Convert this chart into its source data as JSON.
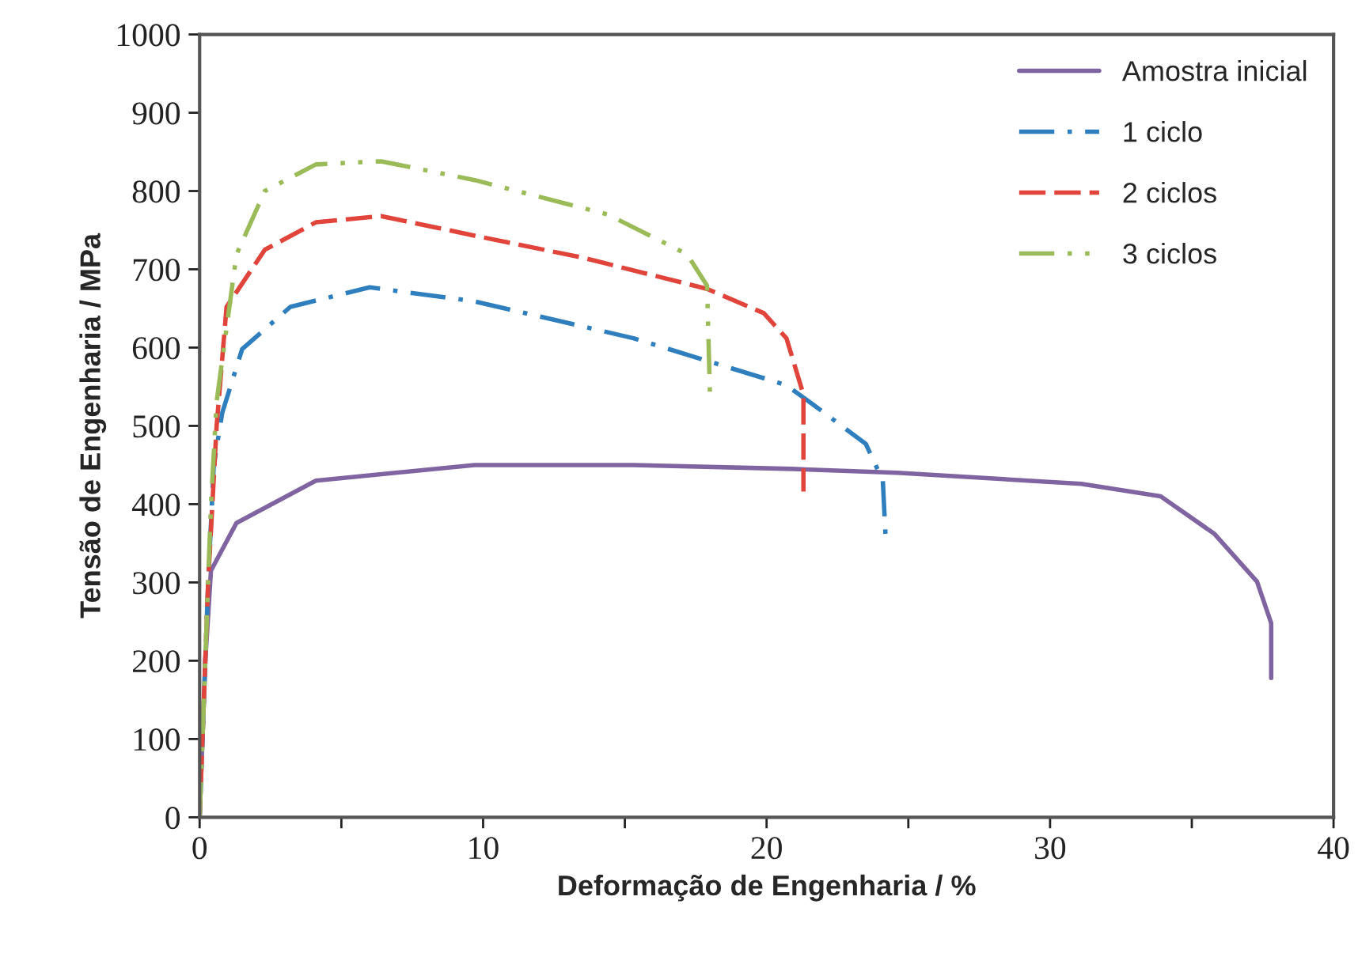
{
  "chart_data": {
    "type": "line",
    "xlabel": "Deformação de Engenharia / %",
    "ylabel": "Tensão de Engenharia / MPa",
    "xlim": [
      0,
      40
    ],
    "xticks": [
      0,
      {
        "value": 5,
        "label": null
      },
      10,
      {
        "value": 15,
        "label": null
      },
      20,
      {
        "value": 25,
        "label": null
      },
      30,
      {
        "value": 35,
        "label": null
      },
      40
    ],
    "ylim": [
      0,
      1000
    ],
    "yticks": [
      0,
      100,
      200,
      300,
      400,
      500,
      600,
      700,
      800,
      900,
      1000
    ],
    "grid": false,
    "legend": "top right",
    "marker": "none",
    "series": [
      {
        "name": "Amostra inicial",
        "color": "#8064a2",
        "line_style": "solid",
        "x": [
          0,
          0.2,
          0.4,
          1.3,
          4.1,
          9.7,
          15.3,
          20.9,
          24.6,
          31.1,
          33.9,
          35.8,
          37.3,
          37.8,
          37.8
        ],
        "values": [
          0,
          200,
          315,
          376,
          430,
          450,
          450,
          445,
          440,
          426,
          410,
          362,
          301,
          248,
          178
        ]
      },
      {
        "name": "1 ciclo",
        "color": "#2f7fbf",
        "line_style": "dashdot",
        "x": [
          0,
          0.3,
          0.5,
          0.8,
          1.5,
          3.2,
          6.0,
          9.7,
          15.3,
          20.7,
          21.8,
          23.5,
          24.1,
          24.2
        ],
        "values": [
          0,
          300,
          450,
          517,
          598,
          652,
          677,
          659,
          612,
          552,
          523,
          477,
          430,
          357
        ]
      },
      {
        "name": "2 ciclos",
        "color": "#e0443a",
        "line_style": "dashed",
        "x": [
          0,
          0.3,
          0.6,
          0.95,
          2.3,
          4.1,
          6.4,
          9.7,
          13.5,
          17.9,
          19.9,
          20.7,
          21.3,
          21.3
        ],
        "values": [
          0,
          300,
          500,
          652,
          725,
          760,
          768,
          743,
          715,
          675,
          644,
          612,
          540,
          416
        ]
      },
      {
        "name": "3 ciclos",
        "color": "#9bbb59",
        "line_style": "dashdotdot",
        "x": [
          0,
          0.4,
          0.6,
          1.3,
          2.3,
          4.1,
          6.4,
          9.7,
          14.4,
          17.2,
          17.9,
          18.0
        ],
        "values": [
          0,
          400,
          531,
          719,
          800,
          834,
          838,
          814,
          770,
          719,
          679,
          543
        ]
      }
    ]
  }
}
